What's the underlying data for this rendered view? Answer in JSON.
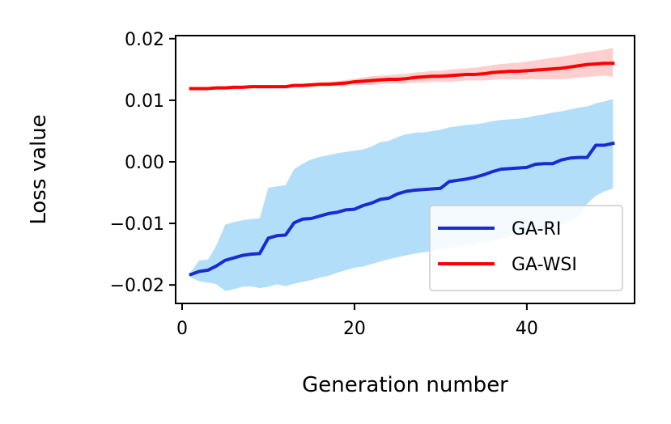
{
  "chart_data": {
    "type": "line",
    "title": "",
    "xlabel": "Generation number",
    "ylabel": "Loss value",
    "xlim": [
      -0.75,
      52.5
    ],
    "ylim": [
      -0.023,
      0.0205
    ],
    "xticks": [
      0,
      20,
      40
    ],
    "xtick_labels": [
      "0",
      "20",
      "40"
    ],
    "yticks": [
      -0.02,
      -0.01,
      0.0,
      0.01,
      0.02
    ],
    "ytick_labels": [
      "−0.02",
      "−0.01",
      "0.00",
      "0.01",
      "0.02"
    ],
    "grid": false,
    "legend_position": "lower-right",
    "x": [
      1,
      2,
      3,
      4,
      5,
      6,
      7,
      8,
      9,
      10,
      11,
      12,
      13,
      14,
      15,
      16,
      17,
      18,
      19,
      20,
      21,
      22,
      23,
      24,
      25,
      26,
      27,
      28,
      29,
      30,
      31,
      32,
      33,
      34,
      35,
      36,
      37,
      38,
      39,
      40,
      41,
      42,
      43,
      44,
      45,
      46,
      47,
      48,
      49,
      50
    ],
    "series": [
      {
        "name": "GA-RI",
        "color": "#1a2bd1",
        "band_color": "#b3defa",
        "values": [
          -0.0183,
          -0.0178,
          -0.0176,
          -0.0169,
          -0.016,
          -0.0156,
          -0.0152,
          -0.015,
          -0.0149,
          -0.0124,
          -0.012,
          -0.0119,
          -0.0099,
          -0.0093,
          -0.0092,
          -0.0088,
          -0.0084,
          -0.0082,
          -0.0078,
          -0.0077,
          -0.0071,
          -0.0067,
          -0.0061,
          -0.0059,
          -0.0052,
          -0.0048,
          -0.0046,
          -0.0045,
          -0.0044,
          -0.0043,
          -0.0032,
          -0.003,
          -0.0028,
          -0.0025,
          -0.0021,
          -0.0016,
          -0.0012,
          -0.0011,
          -0.001,
          -0.0009,
          -0.0004,
          -0.0003,
          -0.0003,
          0.0003,
          0.0006,
          0.0007,
          0.0007,
          0.0027,
          0.0027,
          0.003
        ],
        "upper": [
          -0.0179,
          -0.016,
          -0.0159,
          -0.0135,
          -0.0102,
          -0.0098,
          -0.0095,
          -0.0093,
          -0.0092,
          -0.0042,
          -0.004,
          -0.0038,
          -0.0012,
          -0.0003,
          0.0004,
          0.0008,
          0.0011,
          0.0014,
          0.0016,
          0.0018,
          0.002,
          0.0025,
          0.0032,
          0.0034,
          0.004,
          0.0045,
          0.0047,
          0.0048,
          0.005,
          0.0052,
          0.0056,
          0.0058,
          0.006,
          0.0061,
          0.0063,
          0.0066,
          0.0068,
          0.0069,
          0.007,
          0.0072,
          0.0075,
          0.0077,
          0.008,
          0.0082,
          0.0085,
          0.0088,
          0.009,
          0.0095,
          0.0098,
          0.0102
        ],
        "lower": [
          -0.0188,
          -0.0194,
          -0.0196,
          -0.0199,
          -0.021,
          -0.0207,
          -0.0203,
          -0.0202,
          -0.0205,
          -0.0203,
          -0.0199,
          -0.0202,
          -0.0198,
          -0.0195,
          -0.0192,
          -0.0188,
          -0.0185,
          -0.018,
          -0.0176,
          -0.0172,
          -0.017,
          -0.0166,
          -0.0162,
          -0.0158,
          -0.0155,
          -0.0152,
          -0.0149,
          -0.0147,
          -0.0145,
          -0.0142,
          -0.014,
          -0.0138,
          -0.0136,
          -0.0133,
          -0.013,
          -0.0128,
          -0.0125,
          -0.0122,
          -0.0119,
          -0.0116,
          -0.0113,
          -0.011,
          -0.0106,
          -0.0102,
          -0.0097,
          -0.0088,
          -0.0068,
          -0.0055,
          -0.0048,
          -0.0043
        ]
      },
      {
        "name": "GA-WSI",
        "color": "#ff0000",
        "band_color": "#ffcfcf",
        "values": [
          0.0119,
          0.0119,
          0.0119,
          0.012,
          0.012,
          0.0121,
          0.0121,
          0.0122,
          0.0122,
          0.0122,
          0.0122,
          0.0122,
          0.0124,
          0.0124,
          0.0125,
          0.0126,
          0.0126,
          0.0127,
          0.0128,
          0.013,
          0.0131,
          0.0132,
          0.0133,
          0.0134,
          0.0134,
          0.0135,
          0.0137,
          0.0138,
          0.0139,
          0.0139,
          0.014,
          0.0141,
          0.0142,
          0.0142,
          0.0143,
          0.0145,
          0.0146,
          0.0147,
          0.0147,
          0.0148,
          0.0149,
          0.015,
          0.0151,
          0.0152,
          0.0154,
          0.0156,
          0.0158,
          0.0159,
          0.016,
          0.016
        ],
        "upper": [
          0.012,
          0.012,
          0.012,
          0.0121,
          0.0121,
          0.0122,
          0.0122,
          0.0123,
          0.0123,
          0.0124,
          0.0124,
          0.0124,
          0.0126,
          0.0127,
          0.0128,
          0.0129,
          0.013,
          0.0131,
          0.0133,
          0.0135,
          0.0137,
          0.0139,
          0.014,
          0.0141,
          0.0142,
          0.0143,
          0.0145,
          0.0146,
          0.0148,
          0.0148,
          0.015,
          0.0151,
          0.0152,
          0.0153,
          0.0155,
          0.0157,
          0.0159,
          0.016,
          0.0161,
          0.0163,
          0.0165,
          0.0167,
          0.0169,
          0.0171,
          0.0173,
          0.0176,
          0.0178,
          0.018,
          0.0182,
          0.0185
        ],
        "lower": [
          0.0118,
          0.0118,
          0.0118,
          0.0119,
          0.0119,
          0.012,
          0.012,
          0.0121,
          0.0121,
          0.0121,
          0.0121,
          0.012,
          0.0122,
          0.0122,
          0.0122,
          0.0123,
          0.0123,
          0.0123,
          0.0123,
          0.0125,
          0.0125,
          0.0125,
          0.0126,
          0.0127,
          0.0127,
          0.0127,
          0.0129,
          0.0129,
          0.013,
          0.013,
          0.013,
          0.0131,
          0.0132,
          0.0132,
          0.0132,
          0.0133,
          0.0134,
          0.0134,
          0.0134,
          0.0134,
          0.0134,
          0.0134,
          0.0134,
          0.0134,
          0.0135,
          0.0137,
          0.0138,
          0.0139,
          0.014,
          0.0138
        ]
      }
    ]
  }
}
